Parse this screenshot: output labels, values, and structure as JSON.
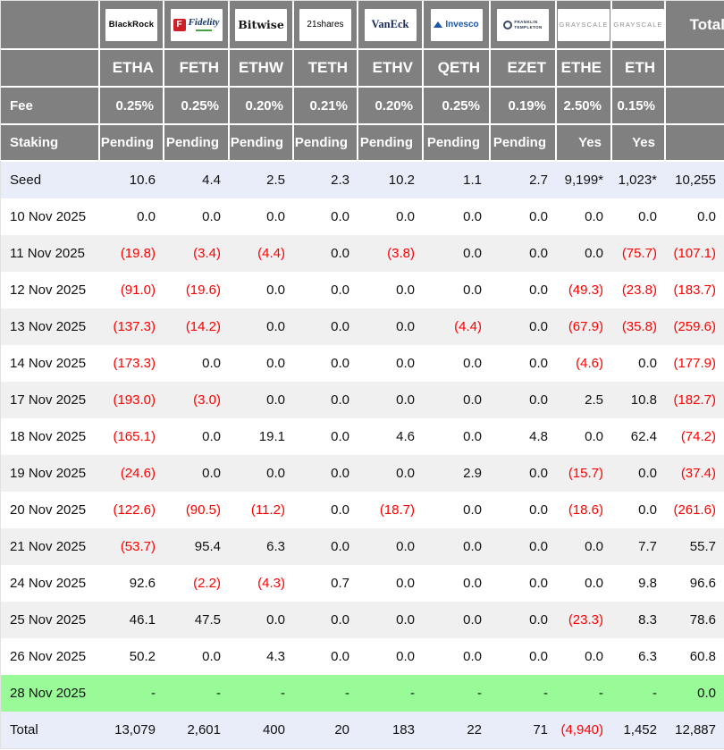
{
  "colors": {
    "header_bg": "#808080",
    "seed_total_row_bg": "#e9edf9",
    "alt_row_bg": "#f0f0f0",
    "highlight_row_bg": "#98fb98",
    "negative_text": "#fe0000"
  },
  "labels": {
    "fee": "Fee",
    "staking": "Staking",
    "total": "Total"
  },
  "chart_data": {
    "type": "table",
    "providers": [
      {
        "name": "BlackRock",
        "ticker": "ETHA",
        "fee": "0.25%",
        "staking": "Pending"
      },
      {
        "name": "Fidelity",
        "initial": "F",
        "ticker": "FETH",
        "fee": "0.25%",
        "staking": "Pending"
      },
      {
        "name": "Bitwise",
        "ticker": "ETHW",
        "fee": "0.20%",
        "staking": "Pending"
      },
      {
        "name": "21shares",
        "ticker": "TETH",
        "fee": "0.21%",
        "staking": "Pending"
      },
      {
        "name": "VanEck",
        "ticker": "ETHV",
        "fee": "0.20%",
        "staking": "Pending"
      },
      {
        "name": "Invesco",
        "ticker": "QETH",
        "fee": "0.25%",
        "staking": "Pending"
      },
      {
        "name": "Franklin Templeton",
        "name_line1": "FRANKLIN",
        "name_line2": "TEMPLETON",
        "ticker": "EZET",
        "fee": "0.19%",
        "staking": "Pending"
      },
      {
        "name": "GRAYSCALE",
        "ticker": "ETHE",
        "fee": "2.50%",
        "staking": "Yes"
      },
      {
        "name": "GRAYSCALE",
        "ticker": "ETH",
        "fee": "0.15%",
        "staking": "Yes"
      }
    ],
    "rows": [
      {
        "label": "Seed",
        "style": "seed",
        "values": [
          "10.6",
          "4.4",
          "2.5",
          "2.3",
          "10.2",
          "1.1",
          "2.7",
          "9,199*",
          "1,023*",
          "10,255"
        ]
      },
      {
        "label": "10 Nov 2025",
        "style": "",
        "values": [
          "0.0",
          "0.0",
          "0.0",
          "0.0",
          "0.0",
          "0.0",
          "0.0",
          "0.0",
          "0.0",
          "0.0"
        ]
      },
      {
        "label": "11 Nov 2025",
        "style": "alt",
        "values": [
          "(19.8)",
          "(3.4)",
          "(4.4)",
          "0.0",
          "(3.8)",
          "0.0",
          "0.0",
          "0.0",
          "(75.7)",
          "(107.1)"
        ]
      },
      {
        "label": "12 Nov 2025",
        "style": "",
        "values": [
          "(91.0)",
          "(19.6)",
          "0.0",
          "0.0",
          "0.0",
          "0.0",
          "0.0",
          "(49.3)",
          "(23.8)",
          "(183.7)"
        ]
      },
      {
        "label": "13 Nov 2025",
        "style": "alt",
        "values": [
          "(137.3)",
          "(14.2)",
          "0.0",
          "0.0",
          "0.0",
          "(4.4)",
          "0.0",
          "(67.9)",
          "(35.8)",
          "(259.6)"
        ]
      },
      {
        "label": "14 Nov 2025",
        "style": "",
        "values": [
          "(173.3)",
          "0.0",
          "0.0",
          "0.0",
          "0.0",
          "0.0",
          "0.0",
          "(4.6)",
          "0.0",
          "(177.9)"
        ]
      },
      {
        "label": "17 Nov 2025",
        "style": "alt",
        "values": [
          "(193.0)",
          "(3.0)",
          "0.0",
          "0.0",
          "0.0",
          "0.0",
          "0.0",
          "2.5",
          "10.8",
          "(182.7)"
        ]
      },
      {
        "label": "18 Nov 2025",
        "style": "",
        "values": [
          "(165.1)",
          "0.0",
          "19.1",
          "0.0",
          "4.6",
          "0.0",
          "4.8",
          "0.0",
          "62.4",
          "(74.2)"
        ]
      },
      {
        "label": "19 Nov 2025",
        "style": "alt",
        "values": [
          "(24.6)",
          "0.0",
          "0.0",
          "0.0",
          "0.0",
          "2.9",
          "0.0",
          "(15.7)",
          "0.0",
          "(37.4)"
        ]
      },
      {
        "label": "20 Nov 2025",
        "style": "",
        "values": [
          "(122.6)",
          "(90.5)",
          "(11.2)",
          "0.0",
          "(18.7)",
          "0.0",
          "0.0",
          "(18.6)",
          "0.0",
          "(261.6)"
        ]
      },
      {
        "label": "21 Nov 2025",
        "style": "alt",
        "values": [
          "(53.7)",
          "95.4",
          "6.3",
          "0.0",
          "0.0",
          "0.0",
          "0.0",
          "0.0",
          "7.7",
          "55.7"
        ]
      },
      {
        "label": "24 Nov 2025",
        "style": "",
        "values": [
          "92.6",
          "(2.2)",
          "(4.3)",
          "0.7",
          "0.0",
          "0.0",
          "0.0",
          "0.0",
          "9.8",
          "96.6"
        ]
      },
      {
        "label": "25 Nov 2025",
        "style": "alt",
        "values": [
          "46.1",
          "47.5",
          "0.0",
          "0.0",
          "0.0",
          "0.0",
          "0.0",
          "(23.3)",
          "8.3",
          "78.6"
        ]
      },
      {
        "label": "26 Nov 2025",
        "style": "",
        "values": [
          "50.2",
          "0.0",
          "4.3",
          "0.0",
          "0.0",
          "0.0",
          "0.0",
          "0.0",
          "6.3",
          "60.8"
        ]
      },
      {
        "label": "28 Nov 2025",
        "style": "highlight",
        "values": [
          "-",
          "-",
          "-",
          "-",
          "-",
          "-",
          "-",
          "-",
          "-",
          "0.0"
        ]
      },
      {
        "label": "Total",
        "style": "total",
        "values": [
          "13,079",
          "2,601",
          "400",
          "20",
          "183",
          "22",
          "71",
          "(4,940)",
          "1,452",
          "12,887"
        ]
      }
    ]
  }
}
